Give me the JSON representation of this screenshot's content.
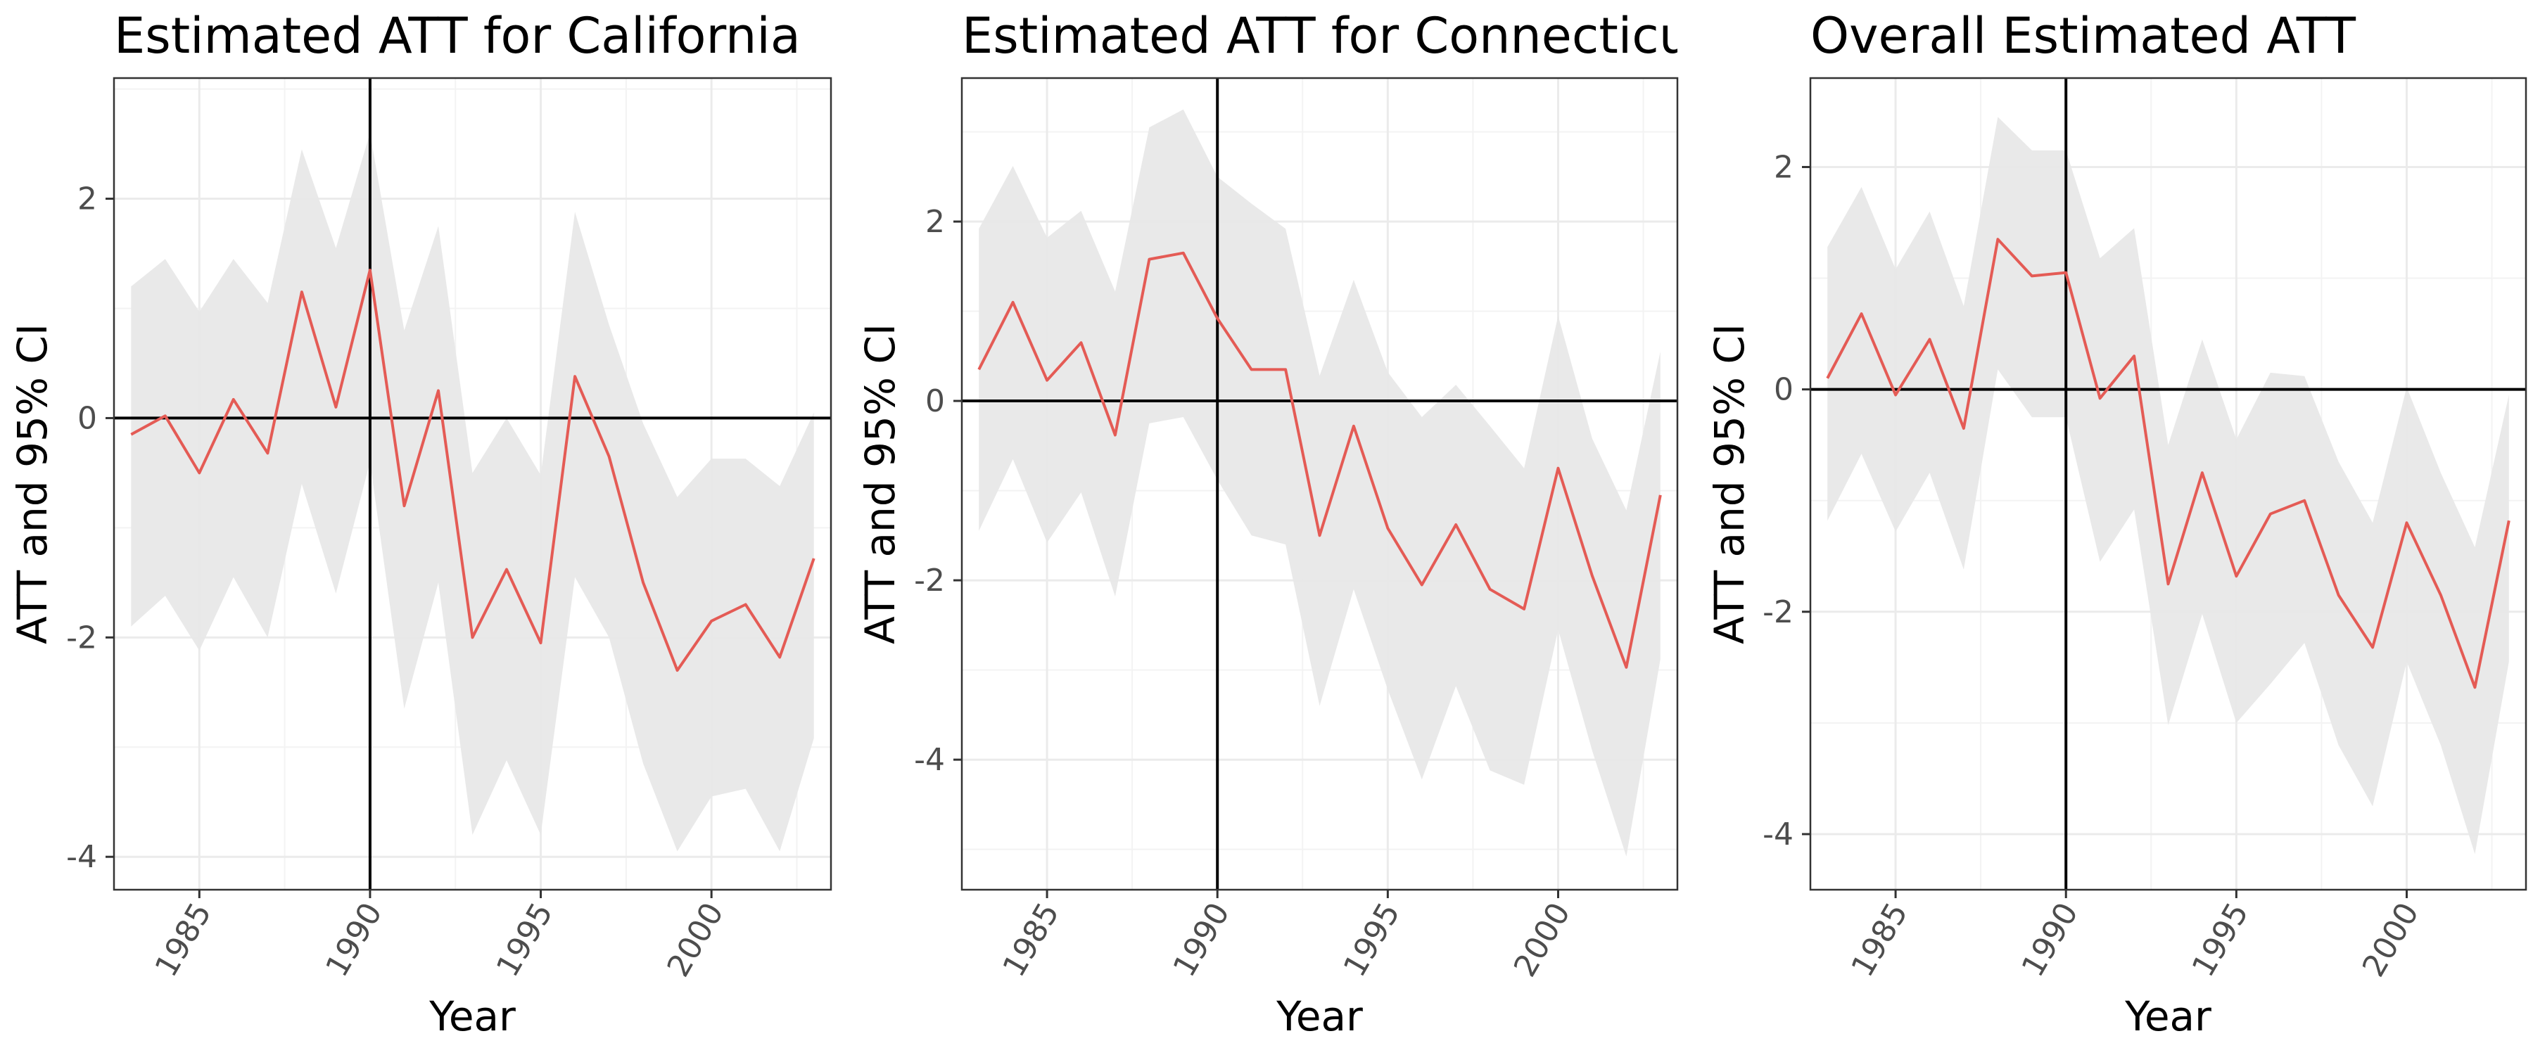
{
  "chart_data": [
    {
      "type": "line",
      "title": "Estimated ATT for California",
      "xlabel": "Year",
      "ylabel": "ATT and 95% CI",
      "xlim": [
        1982.5,
        2003.5
      ],
      "ylim": [
        -4.3,
        3.1
      ],
      "xticks": [
        1985,
        1990,
        1995,
        2000
      ],
      "yticks": [
        -4,
        -2,
        0,
        2
      ],
      "reference_lines": {
        "x": 1990,
        "y": 0
      },
      "line_color": "#e45b55",
      "band_color": "#e8e8e8",
      "x": [
        1983,
        1984,
        1985,
        1986,
        1987,
        1988,
        1989,
        1990,
        1991,
        1992,
        1993,
        1994,
        1995,
        1996,
        1997,
        1998,
        1999,
        2000,
        2001,
        2002,
        2003
      ],
      "att": [
        -0.15,
        0.02,
        -0.5,
        0.17,
        -0.32,
        1.15,
        0.1,
        1.35,
        -0.8,
        0.25,
        -2.0,
        -1.38,
        -2.05,
        0.38,
        -0.35,
        -1.5,
        -2.3,
        -1.85,
        -1.7,
        -2.18,
        -1.28
      ],
      "ci_lower": [
        -1.9,
        -1.62,
        -2.12,
        -1.45,
        -2.0,
        -0.6,
        -1.6,
        -0.4,
        -2.65,
        -1.5,
        -3.8,
        -3.12,
        -3.8,
        -1.45,
        -2.0,
        -3.15,
        -3.95,
        -3.45,
        -3.38,
        -3.95,
        -2.92
      ],
      "ci_upper": [
        1.2,
        1.45,
        0.97,
        1.45,
        1.05,
        2.45,
        1.55,
        2.6,
        0.8,
        1.75,
        -0.5,
        0.0,
        -0.52,
        1.88,
        0.85,
        -0.05,
        -0.72,
        -0.37,
        -0.37,
        -0.62,
        0.05
      ]
    },
    {
      "type": "line",
      "title": "Estimated ATT for Connecticut",
      "xlabel": "Year",
      "ylabel": "ATT and 95% CI",
      "xlim": [
        1982.5,
        2003.5
      ],
      "ylim": [
        -5.45,
        3.6
      ],
      "xticks": [
        1985,
        1990,
        1995,
        2000
      ],
      "yticks": [
        -4,
        -2,
        0,
        2
      ],
      "reference_lines": {
        "x": 1990,
        "y": 0
      },
      "line_color": "#e45b55",
      "band_color": "#e8e8e8",
      "x": [
        1983,
        1984,
        1985,
        1986,
        1987,
        1988,
        1989,
        1990,
        1991,
        1992,
        1993,
        1994,
        1995,
        1996,
        1997,
        1998,
        1999,
        2000,
        2001,
        2002,
        2003
      ],
      "att": [
        0.35,
        1.1,
        0.23,
        0.65,
        -0.38,
        1.58,
        1.65,
        0.92,
        0.35,
        0.35,
        -1.5,
        -0.28,
        -1.42,
        -2.05,
        -1.38,
        -2.1,
        -2.32,
        -0.75,
        -1.95,
        -2.97,
        -1.05
      ],
      "ci_lower": [
        -1.45,
        -0.65,
        -1.58,
        -1.02,
        -2.18,
        -0.25,
        -0.18,
        -0.88,
        -1.5,
        -1.6,
        -3.4,
        -2.1,
        -3.22,
        -4.22,
        -3.18,
        -4.12,
        -4.28,
        -2.55,
        -3.9,
        -5.08,
        -2.88
      ],
      "ci_upper": [
        1.92,
        2.62,
        1.82,
        2.12,
        1.22,
        3.05,
        3.25,
        2.5,
        2.2,
        1.92,
        0.28,
        1.35,
        0.32,
        -0.18,
        0.18,
        -0.28,
        -0.75,
        0.95,
        -0.42,
        -1.22,
        0.55
      ]
    },
    {
      "type": "line",
      "title": "Overall Estimated ATT",
      "xlabel": "Year",
      "ylabel": "ATT and 95% CI",
      "xlim": [
        1982.5,
        2003.5
      ],
      "ylim": [
        -4.5,
        2.8
      ],
      "xticks": [
        1985,
        1990,
        1995,
        2000
      ],
      "yticks": [
        -4,
        -2,
        0,
        2
      ],
      "reference_lines": {
        "x": 1990,
        "y": 0
      },
      "line_color": "#e45b55",
      "band_color": "#e8e8e8",
      "x": [
        1983,
        1984,
        1985,
        1986,
        1987,
        1988,
        1989,
        1990,
        1991,
        1992,
        1993,
        1994,
        1995,
        1996,
        1997,
        1998,
        1999,
        2000,
        2001,
        2002,
        2003
      ],
      "att": [
        0.1,
        0.68,
        -0.05,
        0.45,
        -0.35,
        1.35,
        1.02,
        1.05,
        -0.08,
        0.3,
        -1.75,
        -0.75,
        -1.68,
        -1.12,
        -1.0,
        -1.85,
        -2.32,
        -1.2,
        -1.85,
        -2.68,
        -1.18
      ],
      "ci_lower": [
        -1.18,
        -0.58,
        -1.28,
        -0.75,
        -1.62,
        0.18,
        -0.25,
        -0.25,
        -1.55,
        -1.08,
        -3.02,
        -2.02,
        -3.0,
        -2.65,
        -2.28,
        -3.2,
        -3.75,
        -2.45,
        -3.2,
        -4.18,
        -2.45
      ],
      "ci_upper": [
        1.28,
        1.82,
        1.08,
        1.6,
        0.75,
        2.45,
        2.15,
        2.15,
        1.18,
        1.45,
        -0.5,
        0.45,
        -0.45,
        0.15,
        0.12,
        -0.65,
        -1.2,
        0.02,
        -0.75,
        -1.42,
        -0.05
      ]
    }
  ]
}
